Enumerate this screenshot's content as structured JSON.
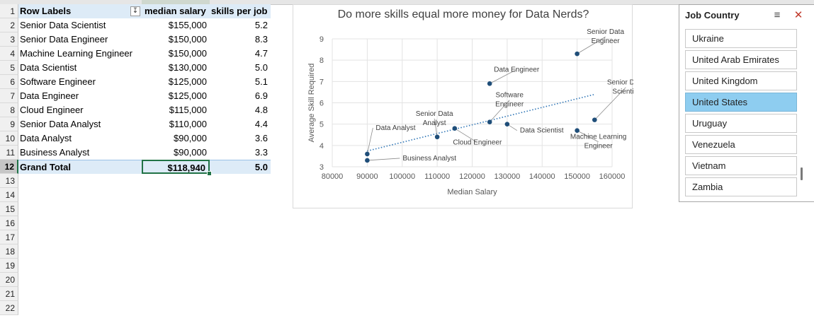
{
  "rows": [
    "1",
    "2",
    "3",
    "4",
    "5",
    "6",
    "7",
    "8",
    "9",
    "10",
    "11",
    "12",
    "13",
    "14",
    "15",
    "16",
    "17",
    "18",
    "19",
    "20",
    "21",
    "22"
  ],
  "active_row": "12",
  "pivot": {
    "headers": {
      "label": "Row Labels",
      "salary": "median salary",
      "skills": "skills per job",
      "filter_icon": "filter-sort-icon"
    },
    "rows": [
      {
        "label": "Senior Data Scientist",
        "salary": "$155,000",
        "skills": "5.2"
      },
      {
        "label": "Senior Data Engineer",
        "salary": "$150,000",
        "skills": "8.3"
      },
      {
        "label": "Machine Learning Engineer",
        "salary": "$150,000",
        "skills": "4.7"
      },
      {
        "label": "Data Scientist",
        "salary": "$130,000",
        "skills": "5.0"
      },
      {
        "label": "Software Engineer",
        "salary": "$125,000",
        "skills": "5.1"
      },
      {
        "label": "Data Engineer",
        "salary": "$125,000",
        "skills": "6.9"
      },
      {
        "label": "Cloud Engineer",
        "salary": "$115,000",
        "skills": "4.8"
      },
      {
        "label": "Senior Data Analyst",
        "salary": "$110,000",
        "skills": "4.4"
      },
      {
        "label": "Data Analyst",
        "salary": "$90,000",
        "skills": "3.6"
      },
      {
        "label": "Business Analyst",
        "salary": "$90,000",
        "skills": "3.3"
      }
    ],
    "total": {
      "label": "Grand Total",
      "salary": "$118,940",
      "skills": "5.0"
    }
  },
  "chart_data": {
    "type": "scatter",
    "title": "Do more skills equal more money for Data Nerds?",
    "xlabel": "Median Salary",
    "ylabel": "Average Skill Required",
    "xlim": [
      80000,
      160000
    ],
    "ylim": [
      3,
      9
    ],
    "x_ticks": [
      "80000",
      "90000",
      "100000",
      "110000",
      "120000",
      "130000",
      "140000",
      "150000",
      "160000"
    ],
    "y_ticks": [
      "3",
      "4",
      "5",
      "6",
      "7",
      "8",
      "9"
    ],
    "marker_color": "#1f4e79",
    "trendline": {
      "style": "dotted",
      "color": "#2e75b6"
    },
    "points": [
      {
        "label": "Senior Data Scientist",
        "x": 155000,
        "y": 5.2
      },
      {
        "label": "Senior Data Engineer",
        "x": 150000,
        "y": 8.3
      },
      {
        "label": "Machine Learning Engineer",
        "x": 150000,
        "y": 4.7
      },
      {
        "label": "Data Scientist",
        "x": 130000,
        "y": 5.0
      },
      {
        "label": "Software Engineer",
        "x": 125000,
        "y": 5.1
      },
      {
        "label": "Data Engineer",
        "x": 125000,
        "y": 6.9
      },
      {
        "label": "Cloud Engineer",
        "x": 115000,
        "y": 4.8
      },
      {
        "label": "Senior Data Analyst",
        "x": 110000,
        "y": 4.4
      },
      {
        "label": "Data Analyst",
        "x": 90000,
        "y": 3.6
      },
      {
        "label": "Business Analyst",
        "x": 90000,
        "y": 3.3
      }
    ]
  },
  "slicer": {
    "title": "Job Country",
    "multi_select_icon": "multi-select-icon",
    "clear_filter_icon": "clear-filter-icon",
    "items": [
      {
        "label": "Ukraine",
        "selected": false
      },
      {
        "label": "United Arab Emirates",
        "selected": false
      },
      {
        "label": "United Kingdom",
        "selected": false
      },
      {
        "label": "United States",
        "selected": true
      },
      {
        "label": "Uruguay",
        "selected": false
      },
      {
        "label": "Venezuela",
        "selected": false
      },
      {
        "label": "Vietnam",
        "selected": false
      },
      {
        "label": "Zambia",
        "selected": false
      }
    ],
    "selected_color": "#8ecdf0"
  }
}
